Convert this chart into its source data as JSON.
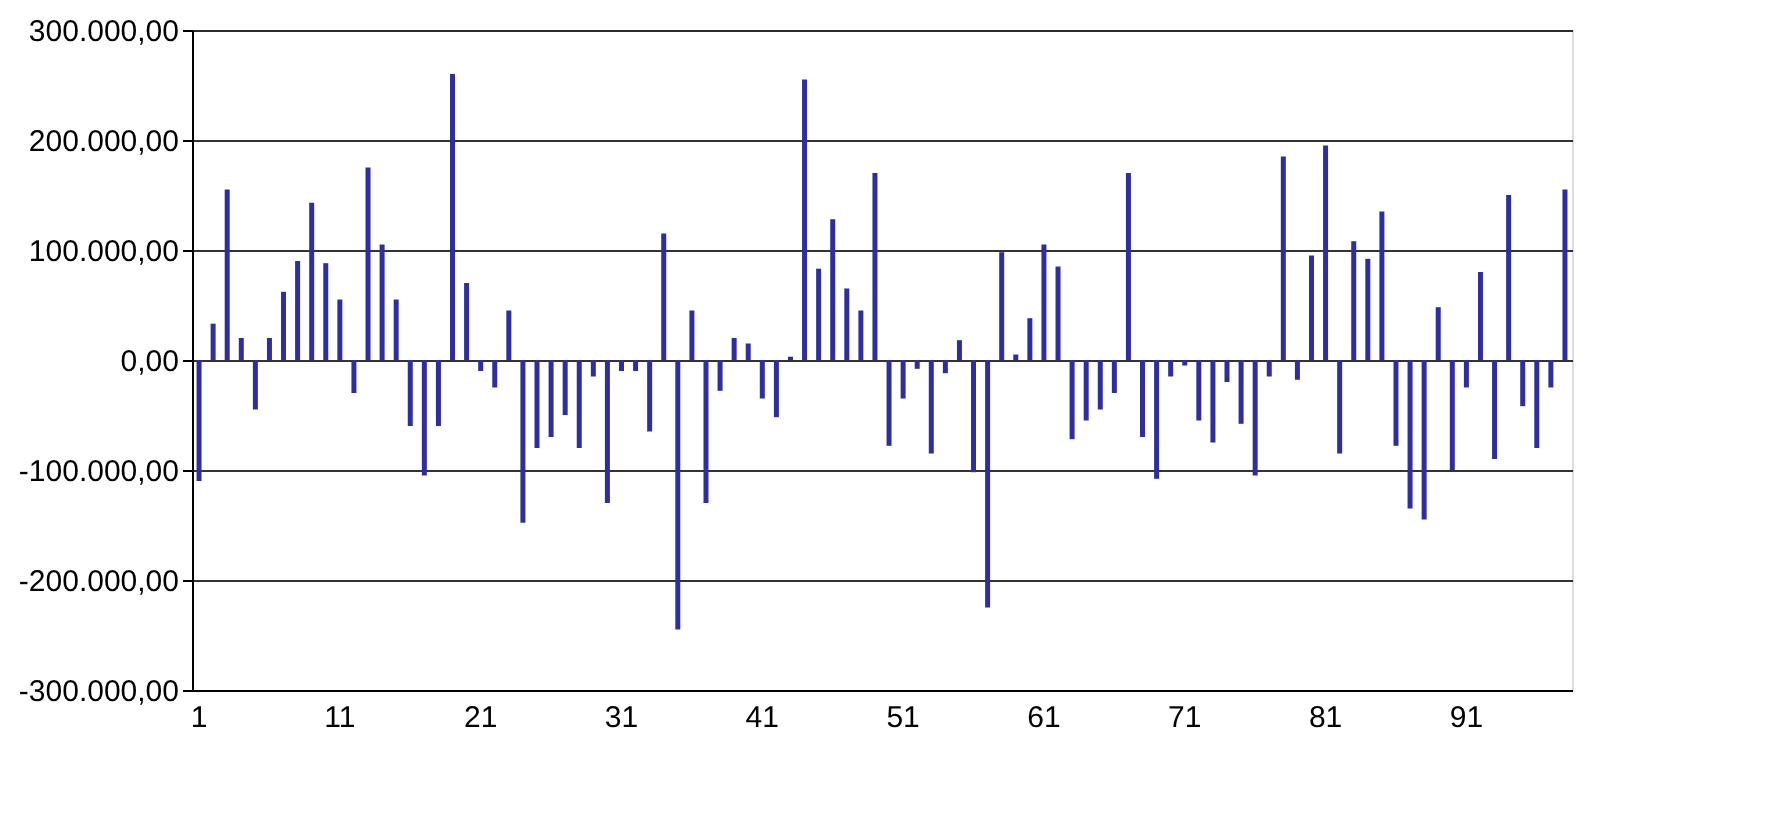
{
  "chart_data": {
    "type": "bar",
    "categories": [
      "1",
      null,
      null,
      null,
      null,
      null,
      null,
      null,
      null,
      null,
      "11",
      null,
      null,
      null,
      null,
      null,
      null,
      null,
      null,
      null,
      "21",
      null,
      null,
      null,
      null,
      null,
      null,
      null,
      null,
      null,
      "31",
      null,
      null,
      null,
      null,
      null,
      null,
      null,
      null,
      null,
      "41",
      null,
      null,
      null,
      null,
      null,
      null,
      null,
      null,
      null,
      "51",
      null,
      null,
      null,
      null,
      null,
      null,
      null,
      null,
      null,
      "61",
      null,
      null,
      null,
      null,
      null,
      null,
      null,
      null,
      null,
      "71",
      null,
      null,
      null,
      null,
      null,
      null,
      null,
      null,
      null,
      "81",
      null,
      null,
      null,
      null,
      null,
      null,
      null,
      null,
      null,
      "91",
      null,
      null,
      null,
      null,
      null,
      null,
      null
    ],
    "series": [
      {
        "color": "#2e2e9e",
        "values": [
          -110000,
          33000,
          155000,
          20000,
          -45000,
          20000,
          62000,
          90000,
          143000,
          88000,
          55000,
          -30000,
          175000,
          105000,
          55000,
          -60000,
          -105000,
          -60000,
          260000,
          70000,
          -10000,
          -25000,
          45000,
          -148000,
          -80000,
          -70000,
          -50000,
          -80000,
          -15000,
          -130000,
          -10000,
          -10000,
          -65000,
          115000,
          -245000,
          45000,
          -130000,
          -28000,
          20000,
          15000,
          -35000,
          -52000,
          3000,
          255000,
          83000,
          128000,
          65000,
          45000,
          170000,
          -78000,
          -35000,
          -8000,
          -85000,
          -12000,
          18000,
          -102000,
          -225000,
          98000,
          5000,
          38000,
          105000,
          85000,
          -72000,
          -55000,
          -45000,
          -30000,
          170000,
          -70000,
          -108000,
          -15000,
          -5000,
          -55000,
          -75000,
          -20000,
          -58000,
          -105000,
          -15000,
          185000,
          -18000,
          95000,
          195000,
          -85000,
          108000,
          92000,
          135000,
          -78000,
          -135000,
          -145000,
          48000,
          -100000,
          -25000,
          80000,
          -90000,
          150000,
          -42000,
          -80000,
          -25000,
          155000
        ]
      }
    ],
    "ylim": [
      -300000,
      300000
    ],
    "yticks": [
      {
        "value": -300000,
        "label": "-300.000,00"
      },
      {
        "value": -200000,
        "label": "-200.000,00"
      },
      {
        "value": -100000,
        "label": "-100.000,00"
      },
      {
        "value": 0,
        "label": "0,00"
      },
      {
        "value": 100000,
        "label": "100.000,00"
      },
      {
        "value": 200000,
        "label": "200.000,00"
      },
      {
        "value": 300000,
        "label": "300.000,00"
      }
    ],
    "grid": "y",
    "legend": false
  }
}
